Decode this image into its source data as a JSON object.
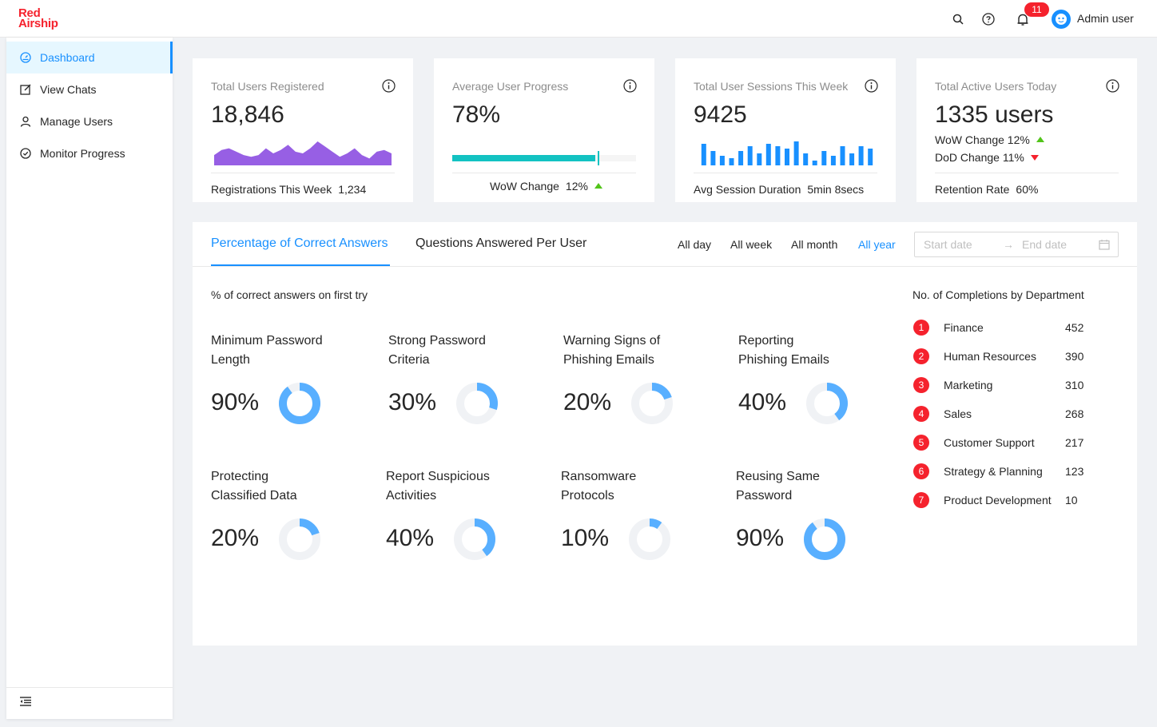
{
  "header": {
    "logo_line1": "Red",
    "logo_line2": "Airship",
    "notification_count": "11",
    "username": "Admin user",
    "icons": [
      "search-icon",
      "help-icon",
      "bell-icon",
      "avatar"
    ]
  },
  "sidebar": {
    "items": [
      {
        "label": "Dashboard",
        "icon": "dashboard-icon",
        "active": true
      },
      {
        "label": "View Chats",
        "icon": "edit-icon",
        "active": false
      },
      {
        "label": "Manage Users",
        "icon": "user-icon",
        "active": false
      },
      {
        "label": "Monitor Progress",
        "icon": "check-circle-icon",
        "active": false
      }
    ],
    "footer_icon": "menu-fold-icon"
  },
  "cards": {
    "registered": {
      "title": "Total Users Registered",
      "value": "18,846",
      "footer_label": "Registrations This Week",
      "footer_value": "1,234",
      "area_values": [
        6,
        9,
        10,
        8,
        6,
        5,
        6,
        10,
        7,
        9,
        12,
        8,
        7,
        10,
        14,
        11,
        8,
        5,
        7,
        10,
        6,
        4,
        8,
        9,
        7
      ]
    },
    "progress": {
      "title": "Average User Progress",
      "value": "78%",
      "progress_fraction": 0.78,
      "footer_label": "WoW Change",
      "footer_value": "12%"
    },
    "sessions": {
      "title": "Total User Sessions This Week",
      "value": "9425",
      "bar_values": [
        9,
        6,
        4,
        3,
        6,
        8,
        5,
        9,
        8,
        7,
        10,
        5,
        2,
        6,
        4,
        8,
        5,
        8,
        7
      ],
      "footer_label": "Avg Session Duration",
      "footer_value": "5min 8secs"
    },
    "active": {
      "title": "Total Active Users Today",
      "value": "1335 users",
      "wow_label": "WoW Change 12%",
      "dod_label": "DoD Change 11%",
      "footer_label": "Retention Rate",
      "footer_value": "60%"
    }
  },
  "panel": {
    "tabs": [
      {
        "label": "Percentage of Correct Answers",
        "active": true
      },
      {
        "label": "Questions Answered Per User",
        "active": false
      }
    ],
    "ranges": [
      {
        "label": "All day",
        "active": false
      },
      {
        "label": "All week",
        "active": false
      },
      {
        "label": "All month",
        "active": false
      },
      {
        "label": "All year",
        "active": true
      }
    ],
    "date_start_placeholder": "Start date",
    "date_end_placeholder": "End date",
    "section_title": "% of correct answers on first try",
    "topics": [
      {
        "line1": "Minimum Password",
        "line2": "Length",
        "percent": "90%",
        "value": 90
      },
      {
        "line1": "Strong Password",
        "line2": "Criteria",
        "percent": "30%",
        "value": 30
      },
      {
        "line1": "Warning Signs of",
        "line2": "Phishing Emails",
        "percent": "20%",
        "value": 20
      },
      {
        "line1": "Reporting",
        "line2": "Phishing Emails",
        "percent": "40%",
        "value": 40
      },
      {
        "line1": "Protecting",
        "line2": "Classified Data",
        "percent": "20%",
        "value": 20
      },
      {
        "line1": "Report Suspicious",
        "line2": "Activities",
        "percent": "40%",
        "value": 40
      },
      {
        "line1": "Ransomware",
        "line2": "Protocols",
        "percent": "10%",
        "value": 10
      },
      {
        "line1": "Reusing Same",
        "line2": "Password",
        "percent": "90%",
        "value": 90
      }
    ],
    "dept_title": "No. of Completions by Department",
    "departments": [
      {
        "rank": "1",
        "name": "Finance",
        "value": "452"
      },
      {
        "rank": "2",
        "name": "Human Resources",
        "value": "390"
      },
      {
        "rank": "3",
        "name": "Marketing",
        "value": "310"
      },
      {
        "rank": "4",
        "name": "Sales",
        "value": "268"
      },
      {
        "rank": "5",
        "name": "Customer Support",
        "value": "217"
      },
      {
        "rank": "6",
        "name": "Strategy & Planning",
        "value": "123"
      },
      {
        "rank": "7",
        "name": "Product Development",
        "value": "10"
      }
    ]
  },
  "colors": {
    "primary": "#1890ff",
    "danger": "#f5222d",
    "success": "#52c41a",
    "teal": "#13c2c2",
    "purple": "#975fe4",
    "donut_fill": "#58afff",
    "donut_track": "#f0f2f5"
  }
}
